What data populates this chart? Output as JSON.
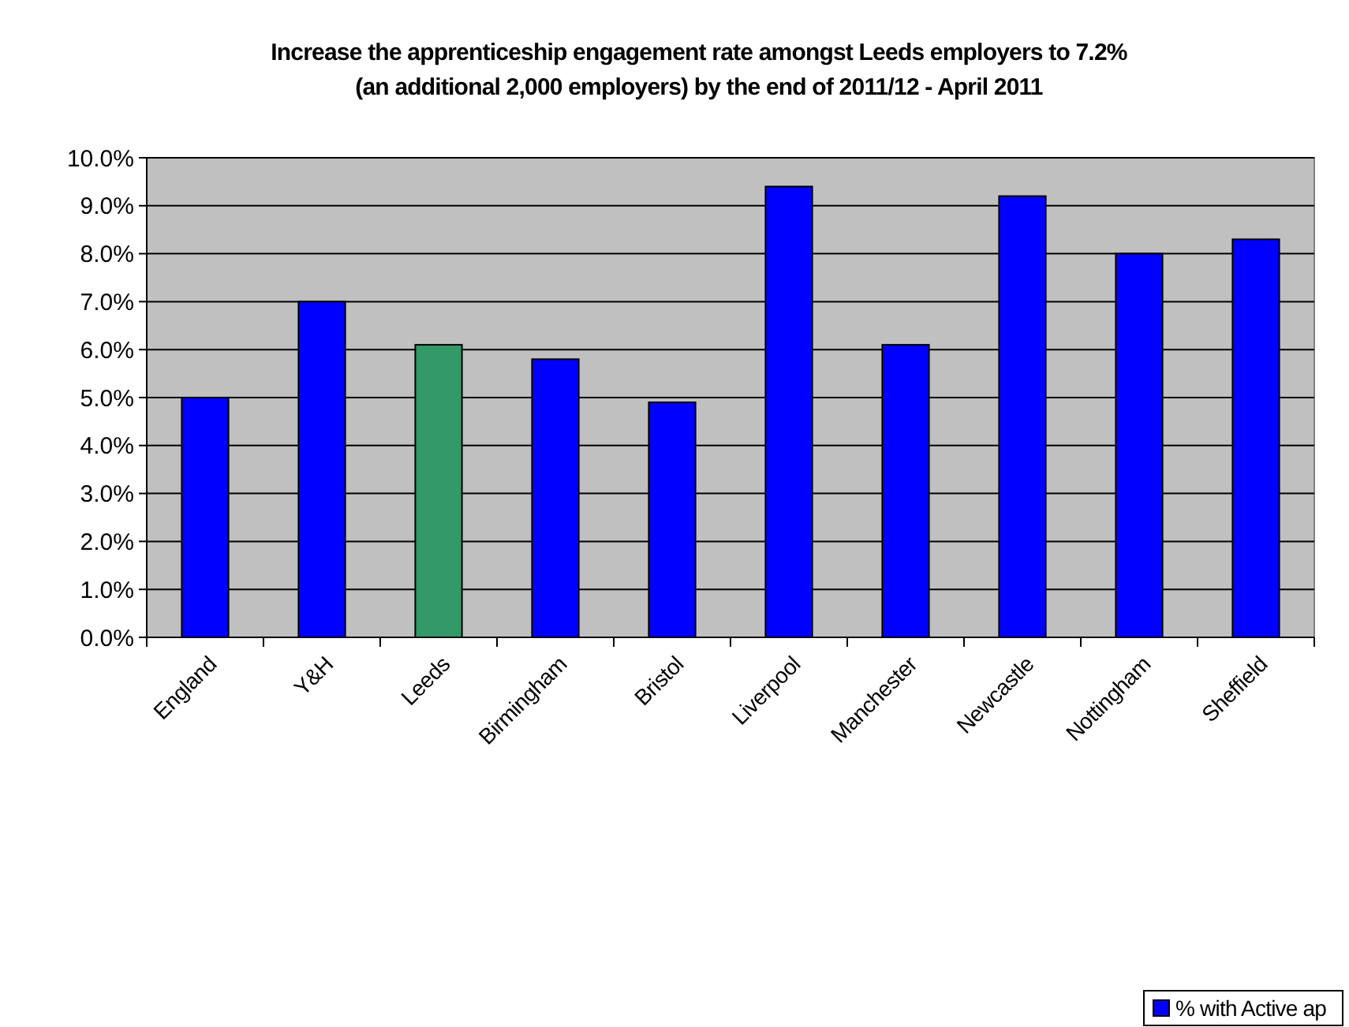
{
  "chart_data": {
    "type": "bar",
    "title": "Increase the apprenticeship engagement rate amongst Leeds employers to 7.2% (an additional 2,000 employers) by the end of 2011/12 - April 2011",
    "categories": [
      "England",
      "Y&H",
      "Leeds",
      "Birmingham",
      "Bristol",
      "Liverpool",
      "Manchester",
      "Newcastle",
      "Nottingham",
      "Sheffield"
    ],
    "series": [
      {
        "name": "% with Active ap",
        "color": "#0000ff",
        "colors": [
          "#0000ff",
          "#0000ff",
          "#339966",
          "#0000ff",
          "#0000ff",
          "#0000ff",
          "#0000ff",
          "#0000ff",
          "#0000ff",
          "#0000ff"
        ],
        "values": [
          5.0,
          7.0,
          6.1,
          5.8,
          4.9,
          9.4,
          6.1,
          9.2,
          8.0,
          8.3
        ]
      }
    ],
    "ylim": [
      0,
      10
    ],
    "yticks": [
      {
        "value": 0,
        "label": "0.0%"
      },
      {
        "value": 1,
        "label": "1.0%"
      },
      {
        "value": 2,
        "label": "2.0%"
      },
      {
        "value": 3,
        "label": "3.0%"
      },
      {
        "value": 4,
        "label": "4.0%"
      },
      {
        "value": 5,
        "label": "5.0%"
      },
      {
        "value": 6,
        "label": "6.0%"
      },
      {
        "value": 7,
        "label": "7.0%"
      },
      {
        "value": 8,
        "label": "8.0%"
      },
      {
        "value": 9,
        "label": "9.0%"
      },
      {
        "value": 10,
        "label": "10.0%"
      }
    ],
    "grid": "y",
    "legend": "bottom right"
  }
}
